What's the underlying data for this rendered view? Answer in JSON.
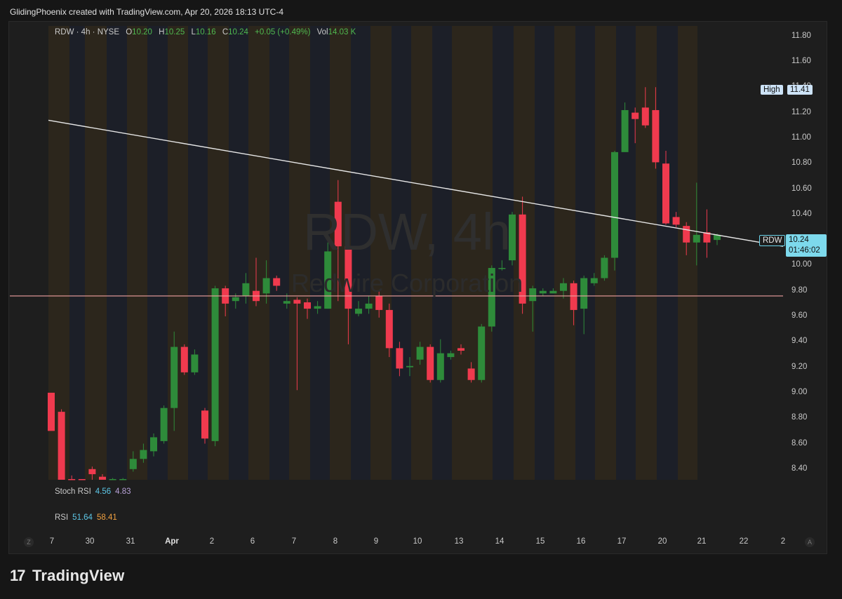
{
  "header": {
    "attribution": "GlidingPhoenix created with TradingView.com, Apr 20, 2026 18:13 UTC-4"
  },
  "legend": {
    "symbol": "RDW · 4h · NYSE",
    "o_label": "O",
    "o": "10.20",
    "h_label": "H",
    "h": "10.25",
    "l_label": "L",
    "l": "10.16",
    "c_label": "C",
    "c": "10.24",
    "change": "+0.05 (+0.49%)",
    "vol_label": "Vol",
    "vol": "14.03 K"
  },
  "watermark": {
    "title": "RDW, 4h",
    "subtitle": "Redwire Corporation"
  },
  "high_badge": {
    "label": "High",
    "value": "11.41"
  },
  "price_badge": {
    "symbol": "RDW",
    "price": "10.24",
    "countdown": "01:46:02"
  },
  "indicators": {
    "stoch_label": "Stoch RSI",
    "stoch_k": "4.56",
    "stoch_d": "4.83",
    "rsi_label": "RSI",
    "rsi_val": "51.64",
    "rsi_ma": "58.41"
  },
  "axis": {
    "z": "Z",
    "a": "A"
  },
  "footer": {
    "brand": "TradingView"
  },
  "colors": {
    "up": "#2e8b3a",
    "down": "#f03a4e",
    "hline": "#f0a0a0",
    "trend": "#e6e6e6"
  },
  "chart_data": {
    "type": "candlestick",
    "y_ticks": [
      "11.80",
      "11.60",
      "11.40",
      "11.20",
      "11.00",
      "10.80",
      "10.60",
      "10.40",
      "10.20",
      "10.00",
      "9.80",
      "9.60",
      "9.40",
      "9.20",
      "9.00",
      "8.80",
      "8.60",
      "8.40"
    ],
    "x_labels": [
      "7",
      "30",
      "31",
      "Apr",
      "2",
      "6",
      "7",
      "8",
      "9",
      "10",
      "13",
      "14",
      "15",
      "16",
      "17",
      "20",
      "21",
      "22",
      "2"
    ],
    "ylim": [
      8.4,
      11.86
    ],
    "horizontal_line": 9.76,
    "trendline": [
      {
        "i": 0,
        "y": 11.14
      },
      {
        "i": 72,
        "y": 10.15
      }
    ],
    "candles": [
      [
        9.0,
        8.7,
        8.92,
        8.75
      ],
      [
        8.85,
        8.2,
        8.87,
        8.0
      ],
      [
        8.3,
        8.2,
        8.35,
        8.15
      ],
      [
        8.3,
        8.22,
        8.32,
        8.18
      ],
      [
        8.4,
        8.36,
        8.42,
        8.3
      ],
      [
        8.34,
        8.3,
        8.36,
        8.28
      ],
      [
        8.3,
        8.31,
        8.33,
        8.28
      ],
      [
        8.3,
        8.31,
        8.33,
        8.28
      ],
      [
        8.4,
        8.48,
        8.54,
        8.38
      ],
      [
        8.48,
        8.55,
        8.6,
        8.45
      ],
      [
        8.54,
        8.65,
        8.68,
        8.5
      ],
      [
        8.62,
        8.88,
        8.9,
        8.6
      ],
      [
        8.88,
        9.36,
        9.48,
        8.7
      ],
      [
        9.36,
        9.16,
        9.38,
        9.14
      ],
      [
        9.16,
        9.3,
        9.34,
        9.14
      ],
      [
        8.86,
        8.64,
        8.88,
        8.6
      ],
      [
        8.62,
        9.82,
        9.84,
        8.58
      ],
      [
        9.82,
        9.7,
        9.84,
        9.6
      ],
      [
        9.72,
        9.75,
        9.78,
        9.66
      ],
      [
        9.76,
        9.86,
        9.94,
        9.7
      ],
      [
        9.8,
        9.72,
        10.06,
        9.68
      ],
      [
        9.78,
        9.9,
        10.04,
        9.7
      ],
      [
        9.9,
        9.84,
        9.92,
        9.8
      ],
      [
        9.7,
        9.72,
        9.78,
        9.66
      ],
      [
        9.73,
        9.7,
        9.75,
        9.02
      ],
      [
        9.71,
        9.66,
        9.74,
        9.58
      ],
      [
        9.66,
        9.68,
        9.72,
        9.62
      ],
      [
        9.66,
        10.11,
        10.18,
        9.66
      ],
      [
        10.5,
        10.15,
        10.67,
        9.72
      ],
      [
        10.15,
        9.66,
        10.3,
        9.38
      ],
      [
        9.62,
        9.66,
        9.72,
        9.6
      ],
      [
        9.66,
        9.7,
        9.76,
        9.62
      ],
      [
        9.76,
        9.65,
        9.8,
        9.59
      ],
      [
        9.65,
        9.35,
        9.7,
        9.28
      ],
      [
        9.35,
        9.19,
        9.4,
        9.13
      ],
      [
        9.2,
        9.21,
        9.28,
        9.13
      ],
      [
        9.26,
        9.36,
        9.4,
        9.22
      ],
      [
        9.36,
        9.1,
        9.38,
        9.08
      ],
      [
        9.1,
        9.31,
        9.42,
        9.08
      ],
      [
        9.28,
        9.31,
        9.33,
        9.26
      ],
      [
        9.35,
        9.33,
        9.38,
        9.3
      ],
      [
        9.19,
        9.1,
        9.24,
        9.08
      ],
      [
        9.1,
        9.52,
        9.54,
        9.08
      ],
      [
        9.52,
        9.98,
        10.0,
        9.48
      ],
      [
        9.98,
        9.98,
        10.04,
        9.96
      ],
      [
        10.04,
        10.4,
        10.42,
        10.0
      ],
      [
        10.4,
        9.7,
        10.54,
        9.62
      ],
      [
        9.72,
        9.82,
        9.84,
        9.48
      ],
      [
        9.78,
        9.8,
        9.82,
        9.76
      ],
      [
        9.78,
        9.8,
        9.82,
        9.78
      ],
      [
        9.8,
        9.86,
        9.9,
        9.74
      ],
      [
        9.86,
        9.65,
        9.88,
        9.53
      ],
      [
        9.66,
        9.9,
        9.92,
        9.46
      ],
      [
        9.86,
        9.9,
        9.94,
        9.84
      ],
      [
        9.9,
        10.06,
        10.08,
        9.88
      ],
      [
        10.06,
        10.89,
        10.9,
        9.96
      ],
      [
        10.89,
        11.22,
        11.28,
        10.9
      ],
      [
        11.2,
        11.15,
        11.24,
        10.96
      ],
      [
        11.24,
        11.1,
        11.4,
        11.08
      ],
      [
        11.22,
        10.81,
        11.4,
        10.76
      ],
      [
        10.8,
        10.33,
        10.9,
        10.32
      ],
      [
        10.38,
        10.32,
        10.42,
        10.3
      ],
      [
        10.31,
        10.18,
        10.34,
        10.08
      ],
      [
        10.18,
        10.24,
        10.65,
        10.0
      ],
      [
        10.26,
        10.18,
        10.44,
        10.06
      ],
      [
        10.2,
        10.24,
        10.25,
        10.16
      ]
    ]
  }
}
